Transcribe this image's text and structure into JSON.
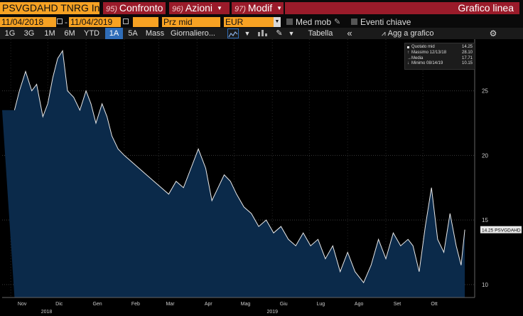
{
  "header": {
    "ticker": "PSVGDAHD TNRG Ind",
    "tabs": [
      {
        "num": "95)",
        "label": "Confronto"
      },
      {
        "num": "96)",
        "label": "Azioni"
      },
      {
        "num": "97)",
        "label": "Modif"
      }
    ],
    "window_title": "Grafico linea"
  },
  "controls": {
    "start_date": "11/04/2018",
    "end_date": "11/04/2019",
    "field": "Prz mid",
    "currency": "EUR",
    "moving_avg_label": "Med mob",
    "key_events_label": "Eventi chiave"
  },
  "toolbar": {
    "periods": [
      "1G",
      "3G",
      "1M",
      "6M",
      "YTD",
      "1A",
      "5A",
      "Mass"
    ],
    "active_period": "1A",
    "frequency": "Giornaliero",
    "table_label": "Tabella",
    "add_label": "Agg a grafico"
  },
  "legend": {
    "rows": [
      {
        "label": "Quotato mid",
        "value": "14.25"
      },
      {
        "label": "Massimo 12/13/18",
        "value": "28.10"
      },
      {
        "label": "Media",
        "value": "17.71"
      },
      {
        "label": "Minimo 08/14/19",
        "value": "10.15"
      }
    ]
  },
  "last_value_tag": "14.25 PSVGDAHD",
  "colors": {
    "orange": "#f7a223",
    "maroon": "#9a1b2a",
    "accent_blue": "#2f6db8",
    "line": "#e8e8e8",
    "fill": "#0b2a4a"
  },
  "chart_data": {
    "type": "area",
    "series": [
      {
        "name": "PSVGDAHD",
        "x": [
          "2018-11-04",
          "2018-11-08",
          "2018-11-13",
          "2018-11-18",
          "2018-11-22",
          "2018-11-27",
          "2018-12-01",
          "2018-12-05",
          "2018-12-09",
          "2018-12-13",
          "2018-12-17",
          "2018-12-22",
          "2018-12-27",
          "2019-01-01",
          "2019-01-05",
          "2019-01-09",
          "2019-01-14",
          "2019-01-18",
          "2019-01-22",
          "2019-01-27",
          "2019-02-01",
          "2019-02-07",
          "2019-02-13",
          "2019-02-19",
          "2019-02-25",
          "2019-03-03",
          "2019-03-09",
          "2019-03-15",
          "2019-03-21",
          "2019-03-27",
          "2019-04-02",
          "2019-04-08",
          "2019-04-13",
          "2019-04-18",
          "2019-04-23",
          "2019-04-28",
          "2019-05-03",
          "2019-05-09",
          "2019-05-15",
          "2019-05-21",
          "2019-05-27",
          "2019-06-02",
          "2019-06-08",
          "2019-06-14",
          "2019-06-20",
          "2019-06-26",
          "2019-07-02",
          "2019-07-08",
          "2019-07-14",
          "2019-07-20",
          "2019-07-26",
          "2019-08-01",
          "2019-08-07",
          "2019-08-14",
          "2019-08-20",
          "2019-08-26",
          "2019-09-01",
          "2019-09-07",
          "2019-09-13",
          "2019-09-19",
          "2019-09-23",
          "2019-09-28",
          "2019-10-03",
          "2019-10-08",
          "2019-10-13",
          "2019-10-18",
          "2019-10-23",
          "2019-10-28",
          "2019-11-01",
          "2019-11-04"
        ],
        "values": [
          23.5,
          25.0,
          26.5,
          25.0,
          25.5,
          23.0,
          24.0,
          26.0,
          27.5,
          28.1,
          25.0,
          24.5,
          23.5,
          25.0,
          24.0,
          22.5,
          24.0,
          23.0,
          21.5,
          20.5,
          20.0,
          19.5,
          19.0,
          18.5,
          18.0,
          17.5,
          17.0,
          18.0,
          17.5,
          19.0,
          20.5,
          19.0,
          16.5,
          17.5,
          18.5,
          18.0,
          17.0,
          16.0,
          15.5,
          14.5,
          15.0,
          14.0,
          14.5,
          13.5,
          13.0,
          14.0,
          13.0,
          13.5,
          12.0,
          13.0,
          11.0,
          12.5,
          11.0,
          10.15,
          11.5,
          13.5,
          12.0,
          14.0,
          13.0,
          13.5,
          13.0,
          11.0,
          14.5,
          17.5,
          13.5,
          12.5,
          15.5,
          13.0,
          11.5,
          14.25
        ]
      }
    ],
    "ylim": [
      9,
      29
    ],
    "yticks": [
      10,
      15,
      20,
      25
    ],
    "xlim": [
      "2018-10-25",
      "2019-11-12"
    ],
    "xtick_labels": [
      {
        "date": "2018-11-01",
        "label": "Nov"
      },
      {
        "date": "2018-12-01",
        "label": "Dic"
      },
      {
        "date": "2019-01-01",
        "label": "Gen"
      },
      {
        "date": "2019-02-01",
        "label": "Feb"
      },
      {
        "date": "2019-03-01",
        "label": "Mar"
      },
      {
        "date": "2019-04-01",
        "label": "Apr"
      },
      {
        "date": "2019-05-01",
        "label": "Mag"
      },
      {
        "date": "2019-06-01",
        "label": "Giu"
      },
      {
        "date": "2019-07-01",
        "label": "Lug"
      },
      {
        "date": "2019-08-01",
        "label": "Ago"
      },
      {
        "date": "2019-09-01",
        "label": "Set"
      },
      {
        "date": "2019-10-01",
        "label": "Ott"
      }
    ],
    "year_labels": [
      {
        "date": "2018-11-30",
        "label": "2018"
      },
      {
        "date": "2019-06-01",
        "label": "2019"
      }
    ],
    "grid": true,
    "legend_position": "top-right"
  }
}
